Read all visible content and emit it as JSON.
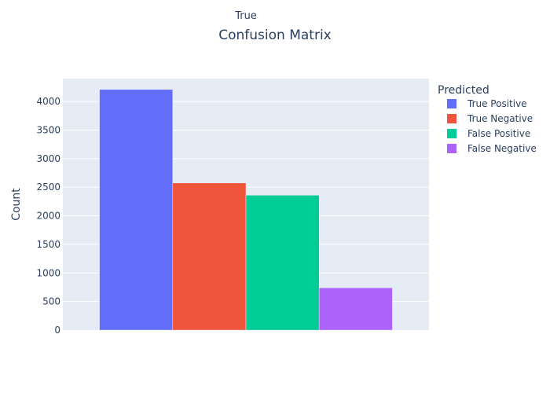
{
  "chart_data": {
    "type": "bar",
    "title": "Confusion Matrix",
    "top_label": "True",
    "xlabel": "",
    "ylabel": "Count",
    "ylim": [
      0,
      4400
    ],
    "yticks": [
      0,
      500,
      1000,
      1500,
      2000,
      2500,
      3000,
      3500,
      4000
    ],
    "grid": true,
    "legend_title": "Predicted",
    "legend_position": "right",
    "series": [
      {
        "name": "True Positive",
        "value": 4210,
        "color": "#636efa"
      },
      {
        "name": "True Negative",
        "value": 2575,
        "color": "#ef553b"
      },
      {
        "name": "False Positive",
        "value": 2360,
        "color": "#00cc96"
      },
      {
        "name": "False Negative",
        "value": 740,
        "color": "#ab63fa"
      }
    ]
  },
  "colors": {
    "plot_background": "#e5ecf6",
    "grid": "#ffffff",
    "text": "#2a3f5f"
  }
}
